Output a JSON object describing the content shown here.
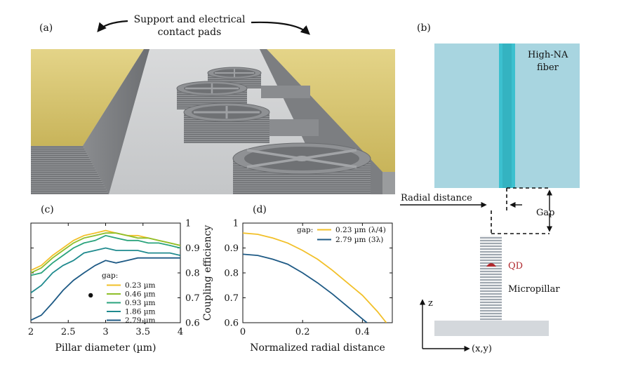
{
  "panel_a": {
    "label": "(a)",
    "annotation_line1": "Support and electrical",
    "annotation_line2": "contact pads"
  },
  "panel_b": {
    "label": "(b)",
    "fiber_line1": "High-NA",
    "fiber_line2": "fiber",
    "radial_distance": "Radial distance",
    "gap": "Gap",
    "qd": "QD",
    "micropillar": "Micropillar",
    "axis_z": "z",
    "axis_xy": "(x,y)",
    "colors": {
      "fiber": "#a8d5e0",
      "core": "#3cc0cf",
      "qd": "#b0282d",
      "substrate": "#d4d8dc"
    }
  },
  "panel_c_label": "(c)",
  "panel_d_label": "(d)",
  "chart_data": [
    {
      "type": "line",
      "xlabel": "Pillar diameter (µm)",
      "ylabel": "Coupling efficiency",
      "xlim": [
        2,
        4
      ],
      "ylim": [
        0.6,
        1
      ],
      "xticks": [
        "2",
        "2.5",
        "3",
        "3.5",
        "4"
      ],
      "yticks": [
        "0.6",
        "0.7",
        "0.8",
        "0.9",
        "1"
      ],
      "legend_title": "gap:",
      "legend_position": "lower-right",
      "x": [
        2.0,
        2.14,
        2.29,
        2.43,
        2.57,
        2.71,
        2.86,
        3.0,
        3.14,
        3.29,
        3.43,
        3.57,
        3.71,
        3.86,
        4.0
      ],
      "series": [
        {
          "name": "0.23 µm",
          "color": "#f2c029",
          "values": [
            0.81,
            0.83,
            0.87,
            0.9,
            0.93,
            0.95,
            0.96,
            0.97,
            0.96,
            0.95,
            0.95,
            0.94,
            0.93,
            0.92,
            0.91
          ]
        },
        {
          "name": "0.46 µm",
          "color": "#8fbf2a",
          "values": [
            0.8,
            0.82,
            0.86,
            0.89,
            0.92,
            0.94,
            0.95,
            0.96,
            0.96,
            0.95,
            0.94,
            0.94,
            0.93,
            0.92,
            0.91
          ]
        },
        {
          "name": "0.93 µm",
          "color": "#2aa37c",
          "values": [
            0.79,
            0.8,
            0.84,
            0.87,
            0.9,
            0.92,
            0.93,
            0.95,
            0.94,
            0.93,
            0.93,
            0.92,
            0.92,
            0.91,
            0.9
          ]
        },
        {
          "name": "1.86 µm",
          "color": "#1f8a8e",
          "values": [
            0.72,
            0.75,
            0.8,
            0.83,
            0.85,
            0.88,
            0.89,
            0.9,
            0.89,
            0.89,
            0.89,
            0.88,
            0.88,
            0.88,
            0.87
          ]
        },
        {
          "name": "2.79 µm",
          "color": "#1e5a85",
          "values": [
            0.61,
            0.63,
            0.68,
            0.73,
            0.77,
            0.8,
            0.83,
            0.85,
            0.84,
            0.85,
            0.86,
            0.86,
            0.86,
            0.86,
            0.86
          ]
        }
      ],
      "marker_point": {
        "x": 2.8,
        "y": 0.71
      }
    },
    {
      "type": "line",
      "xlabel": "Normalized radial distance",
      "ylabel": "",
      "xlim": [
        0,
        0.5
      ],
      "ylim": [
        0.6,
        1
      ],
      "xticks": [
        "0",
        "0.2",
        "0.4"
      ],
      "yticks": [
        "0.6",
        "0.7",
        "0.8",
        "0.9",
        "1"
      ],
      "legend_title": "gap:",
      "legend_position": "top-right",
      "series": [
        {
          "name": "0.23 µm (λ/4)",
          "color": "#f2c029",
          "x": [
            0,
            0.05,
            0.1,
            0.15,
            0.2,
            0.25,
            0.3,
            0.35,
            0.4,
            0.45,
            0.48
          ],
          "values": [
            0.96,
            0.955,
            0.94,
            0.92,
            0.89,
            0.855,
            0.81,
            0.76,
            0.71,
            0.645,
            0.6
          ]
        },
        {
          "name": "2.79 µm (3λ)",
          "color": "#1e5a85",
          "x": [
            0,
            0.05,
            0.1,
            0.15,
            0.2,
            0.25,
            0.3,
            0.35,
            0.4,
            0.415
          ],
          "values": [
            0.875,
            0.87,
            0.855,
            0.835,
            0.8,
            0.76,
            0.715,
            0.665,
            0.615,
            0.6
          ]
        }
      ]
    }
  ]
}
